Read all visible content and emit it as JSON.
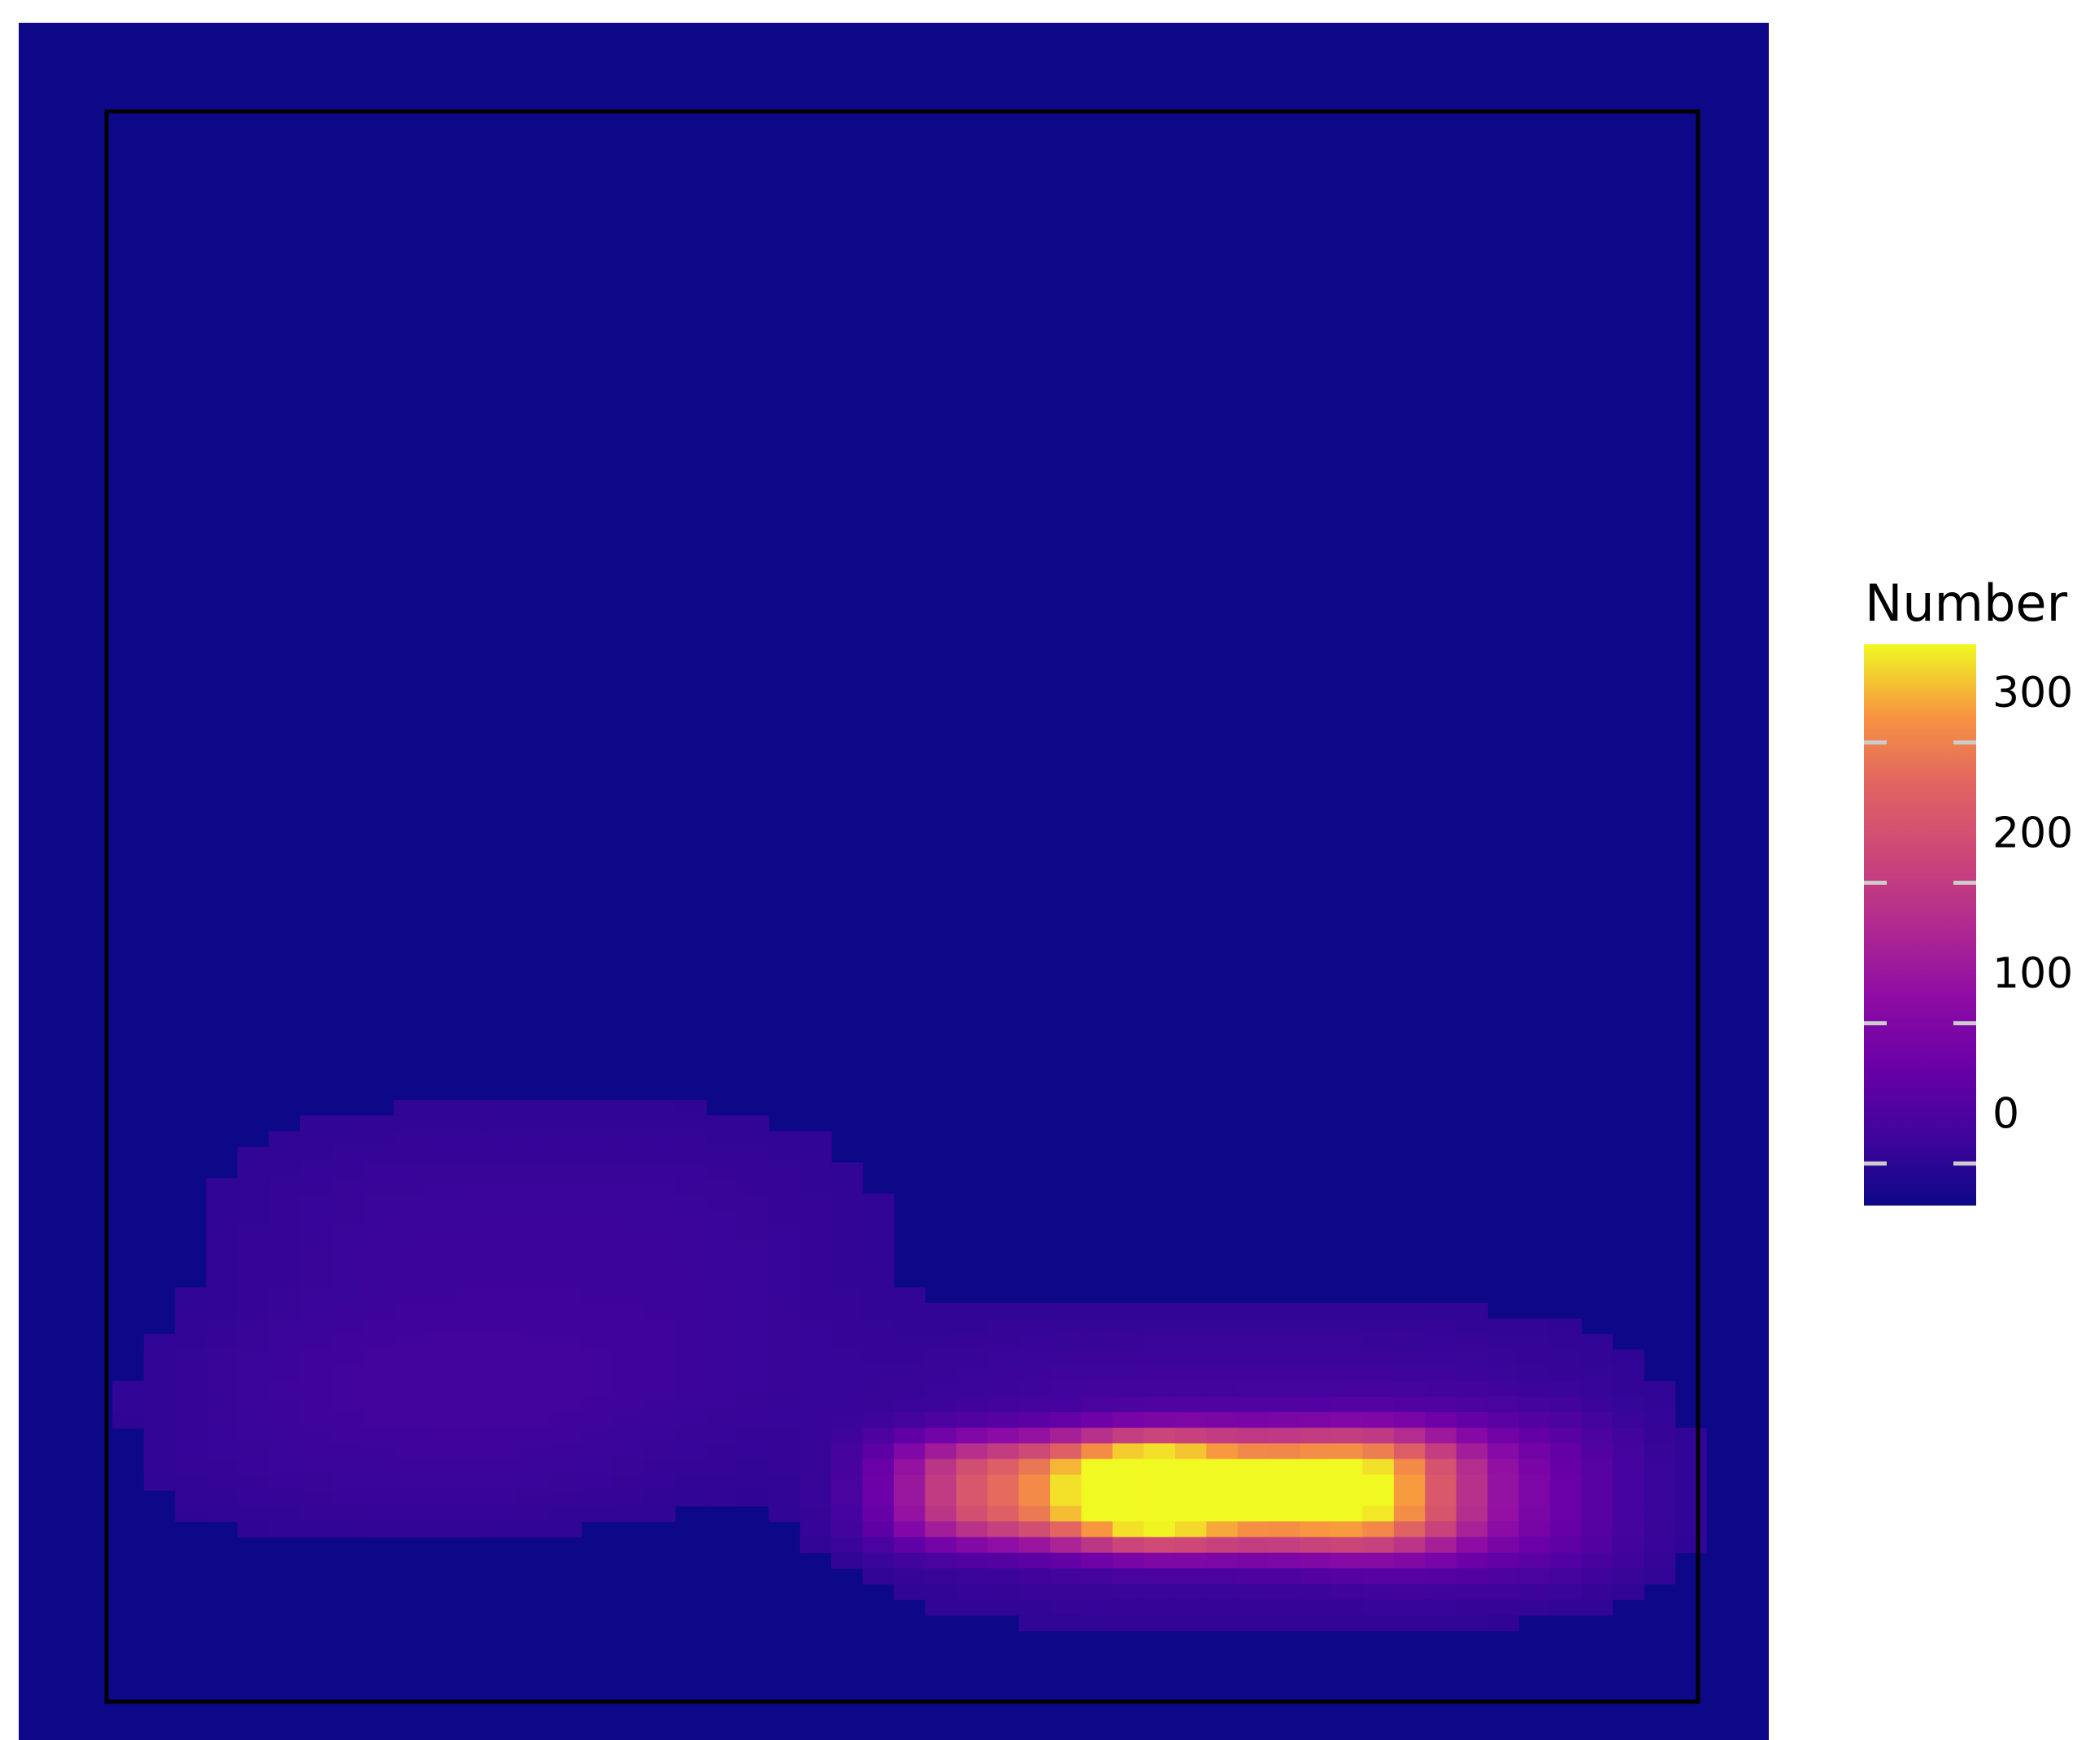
{
  "chart_data": {
    "type": "heatmap",
    "title": "",
    "xlabel": "",
    "ylabel": "",
    "grid": false,
    "colormap": "plasma",
    "background_color": "#0d0887",
    "legend": {
      "title": "Number",
      "placement": "right",
      "ticks": [
        0,
        100,
        200,
        300
      ],
      "tick_labels": [
        "0",
        "100",
        "200",
        "300"
      ],
      "range": [
        -30,
        370
      ]
    },
    "blobs": [
      {
        "name": "main-peak",
        "cx": 0.715,
        "cy": 0.855,
        "sx": 0.105,
        "sy": 0.035,
        "value": 355
      },
      {
        "name": "left-core",
        "cx": 0.585,
        "cy": 0.855,
        "sx": 0.085,
        "sy": 0.032,
        "value": 250
      },
      {
        "name": "right-tail",
        "cx": 0.83,
        "cy": 0.858,
        "sx": 0.085,
        "sy": 0.045,
        "value": 70
      },
      {
        "name": "halo",
        "cx": 0.7,
        "cy": 0.84,
        "sx": 0.2,
        "sy": 0.08,
        "value": 25
      },
      {
        "name": "left-cloud",
        "cx": 0.3,
        "cy": 0.74,
        "sx": 0.18,
        "sy": 0.1,
        "value": 16
      },
      {
        "name": "left-cloud-2",
        "cx": 0.22,
        "cy": 0.82,
        "sx": 0.15,
        "sy": 0.06,
        "value": 10
      }
    ]
  }
}
